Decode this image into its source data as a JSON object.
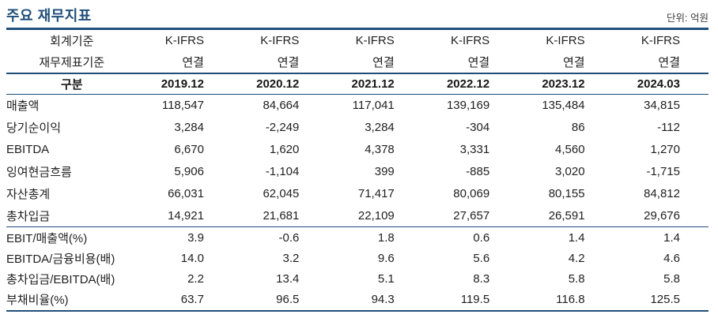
{
  "colors": {
    "accent_navy": "#1F4E79",
    "text": "#222222"
  },
  "header": {
    "title": "주요 재무지표",
    "unit_label": "단위: 억원"
  },
  "table": {
    "meta_rows": [
      {
        "label": "회계기준",
        "values": [
          "K-IFRS",
          "K-IFRS",
          "K-IFRS",
          "K-IFRS",
          "K-IFRS",
          "K-IFRS"
        ]
      },
      {
        "label": "재무제표기준",
        "values": [
          "연결",
          "연결",
          "연결",
          "연결",
          "연결",
          "연결"
        ]
      }
    ],
    "period_header": {
      "label": "구분",
      "periods": [
        "2019.12",
        "2020.12",
        "2021.12",
        "2022.12",
        "2023.12",
        "2024.03"
      ]
    },
    "rows": [
      {
        "label": "매출액",
        "values": [
          "118,547",
          "84,664",
          "117,041",
          "139,169",
          "135,484",
          "34,815"
        ]
      },
      {
        "label": "당기순이익",
        "values": [
          "3,284",
          "-2,249",
          "3,284",
          "-304",
          "86",
          "-112"
        ]
      },
      {
        "label": "EBITDA",
        "values": [
          "6,670",
          "1,620",
          "4,378",
          "3,331",
          "4,560",
          "1,270"
        ]
      },
      {
        "label": "잉여현금흐름",
        "values": [
          "5,906",
          "-1,104",
          "399",
          "-885",
          "3,020",
          "-1,715"
        ]
      },
      {
        "label": "자산총계",
        "values": [
          "66,031",
          "62,045",
          "71,417",
          "80,069",
          "80,155",
          "84,812"
        ]
      },
      {
        "label": "총차입금",
        "values": [
          "14,921",
          "21,681",
          "22,109",
          "27,657",
          "26,591",
          "29,676"
        ]
      }
    ],
    "ratio_rows": [
      {
        "label": "EBIT/매출액(%)",
        "values": [
          "3.9",
          "-0.6",
          "1.8",
          "0.6",
          "1.4",
          "1.4"
        ]
      },
      {
        "label": "EBITDA/금융비용(배)",
        "values": [
          "14.0",
          "3.2",
          "9.6",
          "5.6",
          "4.2",
          "4.6"
        ]
      },
      {
        "label": "총차입금/EBITDA(배)",
        "values": [
          "2.2",
          "13.4",
          "5.1",
          "8.3",
          "5.8",
          "5.8"
        ]
      },
      {
        "label": "부채비율(%)",
        "values": [
          "63.7",
          "96.5",
          "94.3",
          "119.5",
          "116.8",
          "125.5"
        ]
      }
    ]
  }
}
